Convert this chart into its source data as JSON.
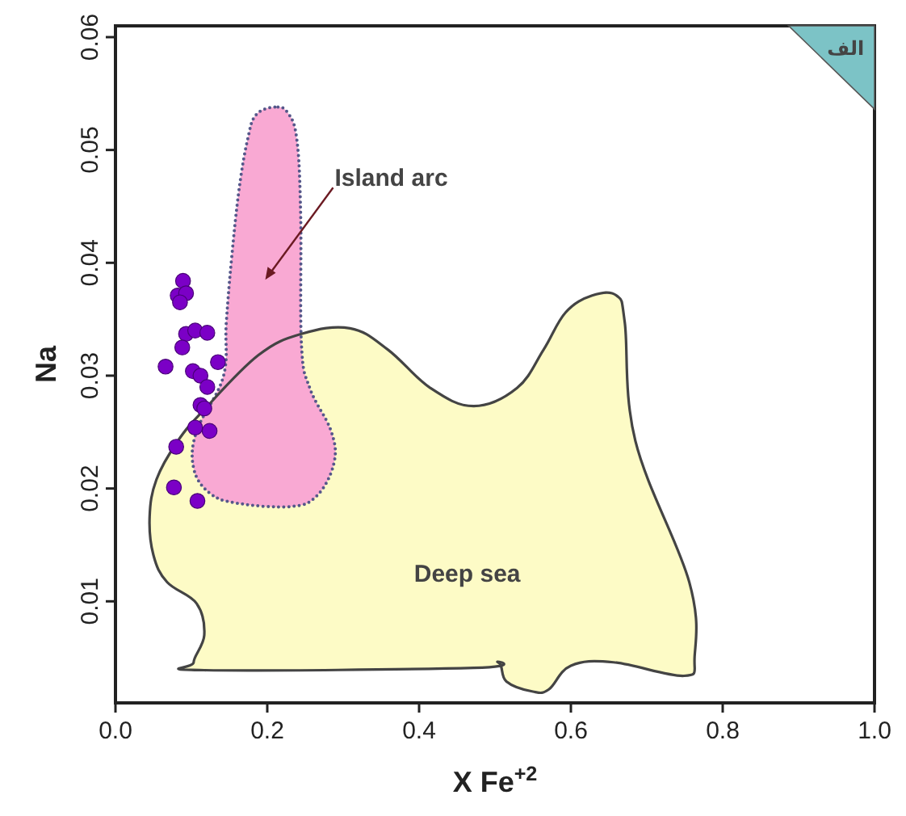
{
  "chart_data": {
    "type": "scatter",
    "xlabel": "X Fe$^{+2}$",
    "ylabel": "Na",
    "xlim": [
      0,
      1
    ],
    "ylim": [
      0.001,
      0.061
    ],
    "xticks": [
      {
        "value": 0,
        "label": "0.0"
      },
      {
        "value": 0.2,
        "label": "0.2"
      },
      {
        "value": 0.4,
        "label": "0.4"
      },
      {
        "value": 0.6,
        "label": "0.6"
      },
      {
        "value": 0.8,
        "label": "0.8"
      },
      {
        "value": 1,
        "label": "1.0"
      }
    ],
    "yticks": [
      0.01,
      0.02,
      0.03,
      0.04,
      0.05,
      0.06
    ],
    "grid": false,
    "annotations": [
      "الف"
    ],
    "series": [
      {
        "type": "area",
        "name": "Deep sea",
        "color": "#fdfbc6",
        "line_style": "solid",
        "x": [
          0.054,
          0.045,
          0.05,
          0.068,
          0.107,
          0.117,
          0.103,
          0.117,
          0.472,
          0.504,
          0.515,
          0.55,
          0.571,
          0.6,
          0.656,
          0.749,
          0.763,
          0.756,
          0.685,
          0.671,
          0.66,
          0.628,
          0.593,
          0.564,
          0.529,
          0.472,
          0.415,
          0.359,
          0.309,
          0.245,
          0.188,
          0.117,
          0.082
        ],
        "values": [
          0.0208,
          0.0175,
          0.0141,
          0.0117,
          0.0098,
          0.007,
          0.0046,
          0.0039,
          0.0041,
          0.0046,
          0.0029,
          0.002,
          0.0022,
          0.0043,
          0.0046,
          0.0034,
          0.0051,
          0.0117,
          0.0242,
          0.0347,
          0.0371,
          0.0371,
          0.0356,
          0.0323,
          0.0289,
          0.0273,
          0.0289,
          0.0323,
          0.0342,
          0.0337,
          0.0318,
          0.027,
          0.0242
        ]
      },
      {
        "type": "area",
        "name": "Island arc",
        "color": "#f9a9d3",
        "line_style": "dotted",
        "x": [
          0.21,
          0.185,
          0.174,
          0.163,
          0.153,
          0.146,
          0.142,
          0.107,
          0.103,
          0.124,
          0.16,
          0.231,
          0.266,
          0.288,
          0.284,
          0.256,
          0.245,
          0.244,
          0.239,
          0.227
        ],
        "values": [
          0.0538,
          0.0531,
          0.0509,
          0.0466,
          0.0404,
          0.0347,
          0.0299,
          0.0251,
          0.0218,
          0.0196,
          0.0187,
          0.0184,
          0.0194,
          0.0223,
          0.0251,
          0.0289,
          0.0328,
          0.0442,
          0.0509,
          0.0533
        ]
      },
      {
        "color": "#7b00c6",
        "marker": "circle",
        "x": [
          0.089,
          0.082,
          0.093,
          0.085,
          0.093,
          0.105,
          0.121,
          0.088,
          0.066,
          0.135,
          0.102,
          0.112,
          0.121,
          0.112,
          0.117,
          0.105,
          0.124,
          0.08,
          0.077,
          0.108
        ],
        "values": [
          0.0384,
          0.0371,
          0.0373,
          0.0365,
          0.0337,
          0.034,
          0.0338,
          0.0325,
          0.0308,
          0.0312,
          0.0304,
          0.03,
          0.029,
          0.0274,
          0.0271,
          0.0254,
          0.0251,
          0.0237,
          0.0201,
          0.0189
        ]
      }
    ]
  }
}
